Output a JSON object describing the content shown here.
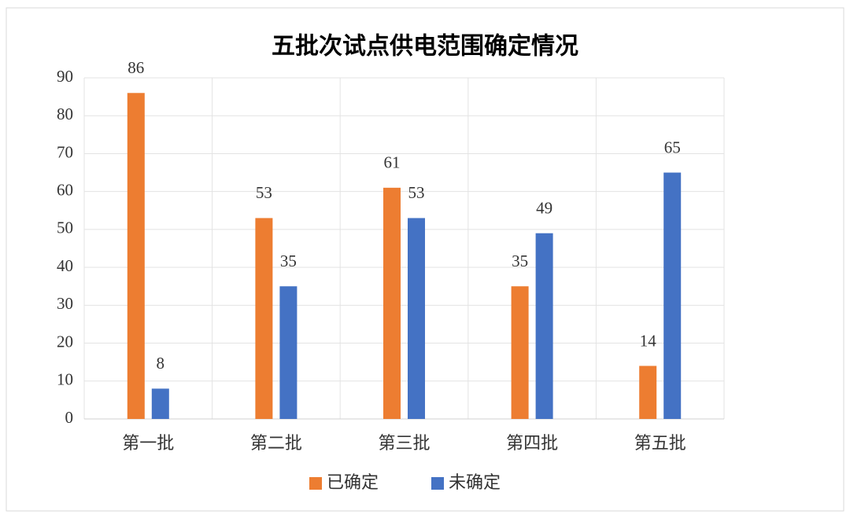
{
  "chart_data": {
    "type": "bar",
    "title": "五批次试点供电范围确定情况",
    "categories": [
      "第一批",
      "第二批",
      "第三批",
      "第四批",
      "第五批"
    ],
    "series": [
      {
        "name": "已确定",
        "color": "#ed7d31",
        "values": [
          86,
          53,
          61,
          35,
          14
        ]
      },
      {
        "name": "未确定",
        "color": "#4472c4",
        "values": [
          8,
          35,
          53,
          49,
          65
        ]
      }
    ],
    "ylim": [
      0,
      90
    ],
    "yticks": [
      0,
      10,
      20,
      30,
      40,
      50,
      60,
      70,
      80,
      90
    ],
    "grid": true,
    "legend": "bottom"
  }
}
